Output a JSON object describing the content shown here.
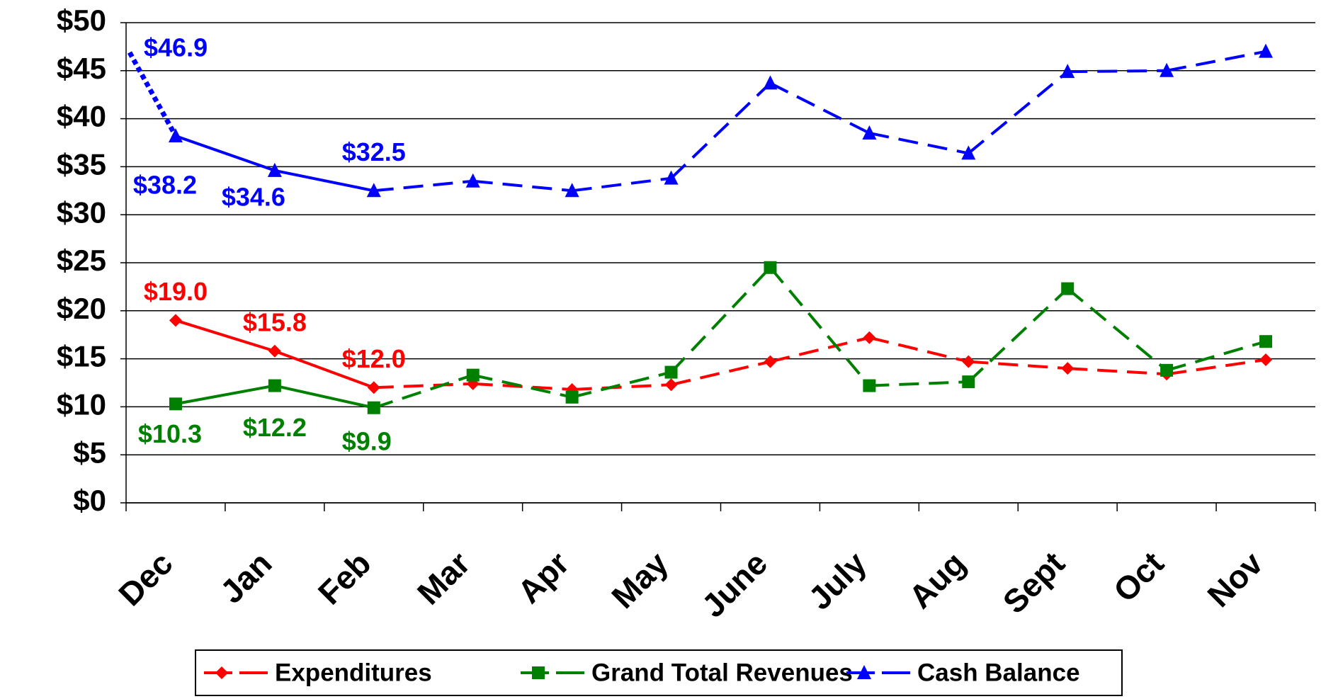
{
  "chart_data": {
    "type": "line",
    "categories": [
      "Dec",
      "Jan",
      "Feb",
      "Mar",
      "Apr",
      "May",
      "June",
      "July",
      "Aug",
      "Sept",
      "Oct",
      "Nov"
    ],
    "series": [
      {
        "name": "Expenditures",
        "color": "#ff0000",
        "marker": "diamond",
        "values": [
          19.0,
          15.8,
          12.0,
          12.4,
          11.8,
          12.3,
          14.7,
          17.2,
          14.7,
          14.0,
          13.4,
          14.9
        ],
        "value_labels": [
          "$19.0",
          "$15.8",
          "$12.0",
          null,
          null,
          null,
          null,
          null,
          null,
          null,
          null,
          null
        ]
      },
      {
        "name": "Grand Total Revenues",
        "color": "#008000",
        "marker": "square",
        "values": [
          10.3,
          12.2,
          9.9,
          13.3,
          11.0,
          13.6,
          24.5,
          12.2,
          12.6,
          22.3,
          13.8,
          16.8
        ],
        "value_labels": [
          "$10.3",
          "$12.2",
          "$9.9",
          null,
          null,
          null,
          null,
          null,
          null,
          null,
          null,
          null
        ]
      },
      {
        "name": "Cash Balance",
        "color": "#0000ff",
        "marker": "triangle",
        "start_value": 46.9,
        "start_value_label": "$46.9",
        "values": [
          38.2,
          34.6,
          32.5,
          33.5,
          32.5,
          33.8,
          43.7,
          38.5,
          36.4,
          44.9,
          45.0,
          47.0
        ],
        "value_labels": [
          "$38.2",
          "$34.6",
          "$32.5",
          null,
          null,
          null,
          null,
          null,
          null,
          null,
          null,
          null
        ]
      }
    ],
    "ylim": [
      0,
      50
    ],
    "yticks": [
      {
        "value": 0,
        "label": "$0"
      },
      {
        "value": 5,
        "label": "$5"
      },
      {
        "value": 10,
        "label": "$10"
      },
      {
        "value": 15,
        "label": "$15"
      },
      {
        "value": 20,
        "label": "$20"
      },
      {
        "value": 25,
        "label": "$25"
      },
      {
        "value": 30,
        "label": "$30"
      },
      {
        "value": 35,
        "label": "$35"
      },
      {
        "value": 40,
        "label": "$40"
      },
      {
        "value": 45,
        "label": "$45"
      },
      {
        "value": 50,
        "label": "$50"
      }
    ],
    "grid": true,
    "legend": "bottom"
  }
}
